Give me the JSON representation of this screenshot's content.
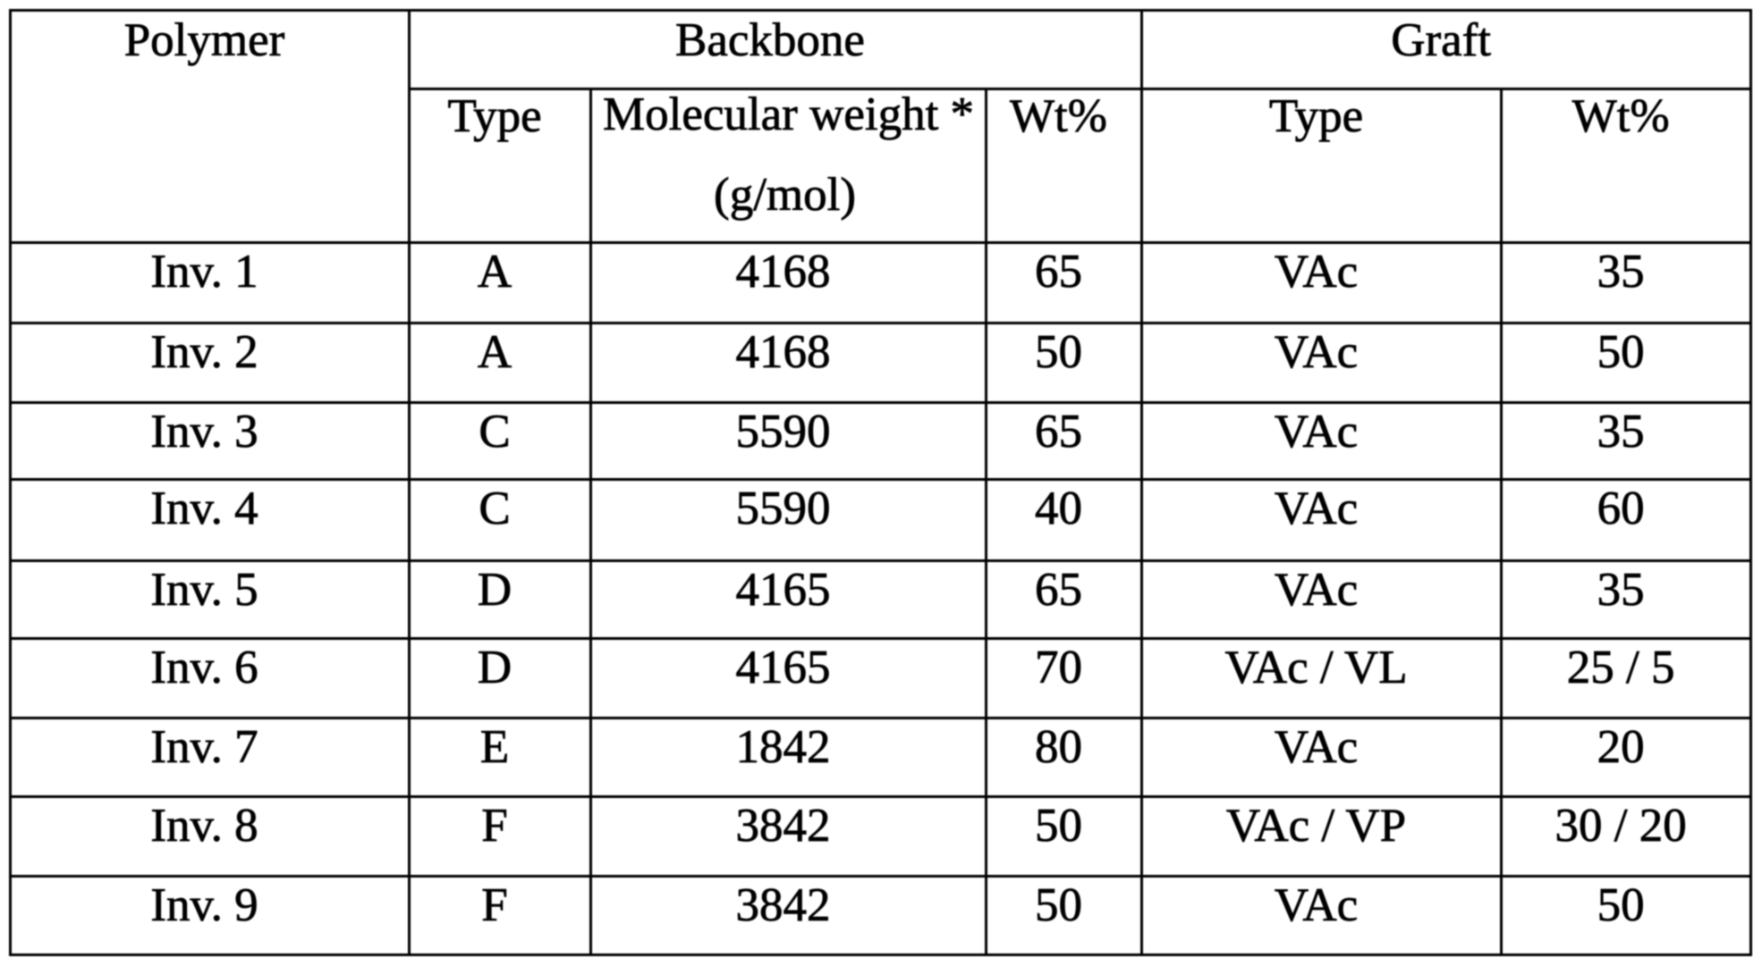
{
  "table": {
    "header": {
      "polymer": "Polymer",
      "backbone": "Backbone",
      "graft": "Graft",
      "backbone_type": "Type",
      "backbone_mw_line1": "Molecular weight *",
      "backbone_mw_line2": "(g/mol)",
      "backbone_wt": "Wt%",
      "graft_type": "Type",
      "graft_wt": "Wt%"
    },
    "rows": [
      {
        "polymer": "Inv. 1",
        "backbone_type": "A",
        "molecular_weight": "4168",
        "backbone_wt": "65",
        "graft_type": "VAc",
        "graft_wt": "35"
      },
      {
        "polymer": "Inv. 2",
        "backbone_type": "A",
        "molecular_weight": "4168",
        "backbone_wt": "50",
        "graft_type": "VAc",
        "graft_wt": "50"
      },
      {
        "polymer": "Inv. 3",
        "backbone_type": "C",
        "molecular_weight": "5590",
        "backbone_wt": "65",
        "graft_type": "VAc",
        "graft_wt": "35"
      },
      {
        "polymer": "Inv. 4",
        "backbone_type": "C",
        "molecular_weight": "5590",
        "backbone_wt": "40",
        "graft_type": "VAc",
        "graft_wt": "60"
      },
      {
        "polymer": "Inv. 5",
        "backbone_type": "D",
        "molecular_weight": "4165",
        "backbone_wt": "65",
        "graft_type": "VAc",
        "graft_wt": "35"
      },
      {
        "polymer": "Inv. 6",
        "backbone_type": "D",
        "molecular_weight": "4165",
        "backbone_wt": "70",
        "graft_type": "VAc / VL",
        "graft_wt": "25 / 5"
      },
      {
        "polymer": "Inv. 7",
        "backbone_type": "E",
        "molecular_weight": "1842",
        "backbone_wt": "80",
        "graft_type": "VAc",
        "graft_wt": "20"
      },
      {
        "polymer": "Inv. 8",
        "backbone_type": "F",
        "molecular_weight": "3842",
        "backbone_wt": "50",
        "graft_type": "VAc / VP",
        "graft_wt": "30 / 20"
      },
      {
        "polymer": "Inv. 9",
        "backbone_type": "F",
        "molecular_weight": "3842",
        "backbone_wt": "50",
        "graft_type": "VAc",
        "graft_wt": "50"
      }
    ]
  },
  "colors": {
    "border": "#000000",
    "background": "#ffffff",
    "text": "#000000"
  }
}
